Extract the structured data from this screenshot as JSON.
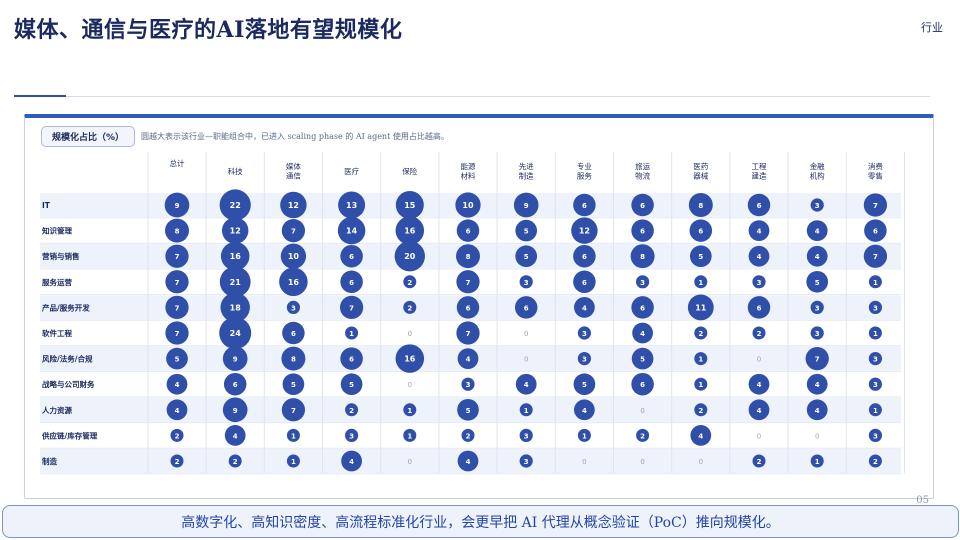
{
  "page": {
    "title": "媒体、通信与医疗的AI落地有望规模化",
    "tag": "行业",
    "legend_pill": "规模化占比（%）",
    "legend_note": "圆越大表示该行业—职能组合中，已进入 scaling phase 的 AI agent 使用占比越高。",
    "page_number": "05",
    "footer": "高数字化、高知识密度、高流程标准化行业，会更早把 AI 代理从概念验证（PoC）推向规模化。"
  },
  "colors": {
    "bubble": "#2f4fa8",
    "row_shade": "#edf2fb",
    "zero_text": "#9aa3b8",
    "accent": "#2f5bbf"
  },
  "chart_data": {
    "type": "bubble-matrix",
    "unit": "%",
    "columns": [
      [
        "总计"
      ],
      [
        "科技"
      ],
      [
        "媒体",
        "通信"
      ],
      [
        "医疗"
      ],
      [
        "保险"
      ],
      [
        "能源",
        "材料"
      ],
      [
        "先进",
        "制造"
      ],
      [
        "专业",
        "服务"
      ],
      [
        "旅运",
        "物流"
      ],
      [
        "医药",
        "器械"
      ],
      [
        "工程",
        "建造"
      ],
      [
        "金融",
        "机构"
      ],
      [
        "消费",
        "零售"
      ]
    ],
    "rows": [
      {
        "label": "IT",
        "values": [
          9,
          22,
          12,
          13,
          15,
          10,
          9,
          6,
          6,
          8,
          6,
          3,
          7
        ]
      },
      {
        "label": "知识管理",
        "values": [
          8,
          12,
          7,
          14,
          16,
          6,
          5,
          12,
          6,
          6,
          4,
          4,
          6
        ]
      },
      {
        "label": "营销与销售",
        "values": [
          7,
          16,
          10,
          6,
          20,
          8,
          5,
          6,
          8,
          5,
          4,
          4,
          7
        ]
      },
      {
        "label": "服务运营",
        "values": [
          7,
          21,
          16,
          6,
          2,
          7,
          3,
          6,
          3,
          1,
          3,
          5,
          1
        ]
      },
      {
        "label": "产品/服务开发",
        "values": [
          7,
          18,
          3,
          7,
          2,
          6,
          6,
          4,
          6,
          11,
          6,
          3,
          3
        ]
      },
      {
        "label": "软件工程",
        "values": [
          7,
          24,
          6,
          1,
          0,
          7,
          0,
          3,
          4,
          2,
          2,
          3,
          1
        ]
      },
      {
        "label": "风险/法务/合规",
        "values": [
          5,
          9,
          8,
          6,
          16,
          4,
          0,
          3,
          5,
          1,
          0,
          7,
          3
        ]
      },
      {
        "label": "战略与公司财务",
        "values": [
          4,
          6,
          5,
          5,
          0,
          3,
          4,
          5,
          6,
          1,
          4,
          4,
          3
        ]
      },
      {
        "label": "人力资源",
        "values": [
          4,
          9,
          7,
          2,
          1,
          5,
          1,
          4,
          0,
          2,
          4,
          4,
          1
        ]
      },
      {
        "label": "供应链/库存管理",
        "values": [
          2,
          4,
          1,
          3,
          1,
          2,
          3,
          1,
          2,
          4,
          0,
          0,
          3
        ]
      },
      {
        "label": "制造",
        "values": [
          2,
          2,
          1,
          4,
          0,
          4,
          3,
          0,
          0,
          0,
          2,
          1,
          2
        ]
      }
    ]
  }
}
